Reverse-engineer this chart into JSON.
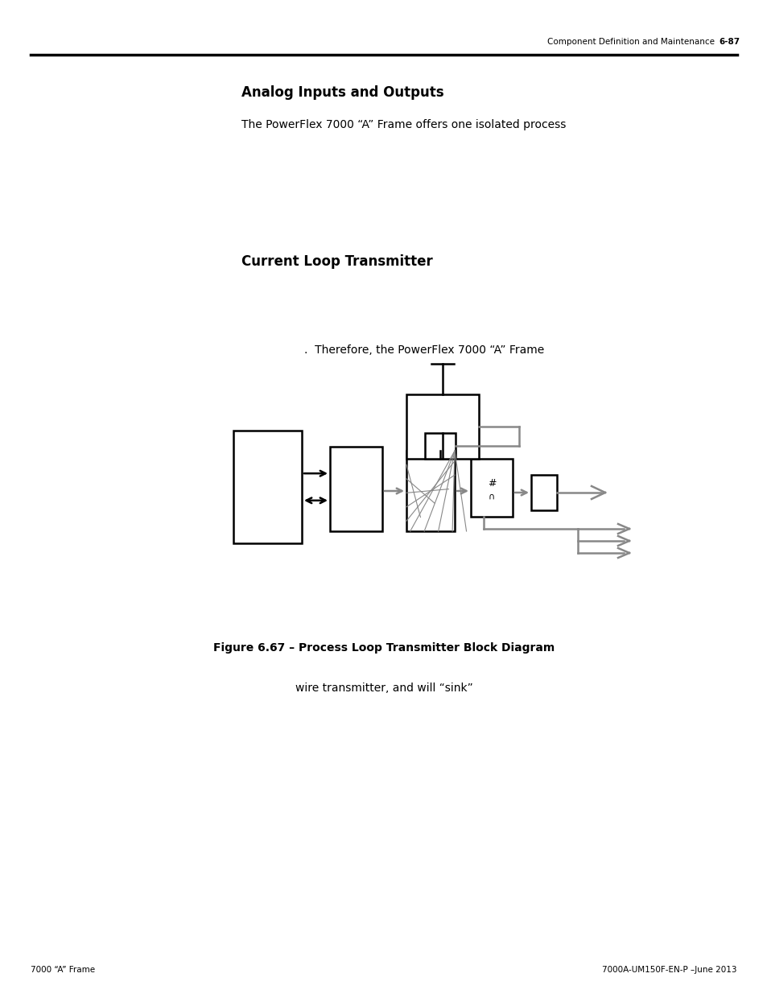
{
  "page_header_text": "Component Definition and Maintenance",
  "page_header_number": "6-87",
  "footer_left": "7000 “A” Frame",
  "footer_right": "7000A-UM150F-EN-P –June 2013",
  "title": "Analog Inputs and Outputs",
  "body_text1": "The PowerFlex 7000 “A” Frame offers one isolated process",
  "section2_title": "Current Loop Transmitter",
  "body_text2": ".  Therefore, the PowerFlex 7000 “A” Frame",
  "fig_caption": "Figure 6.67 – Process Loop Transmitter Block Diagram",
  "body_text3": "wire transmitter, and will “sink”",
  "background_color": "#ffffff",
  "text_color": "#000000",
  "line_color": "#000000",
  "gray_color": "#888888"
}
